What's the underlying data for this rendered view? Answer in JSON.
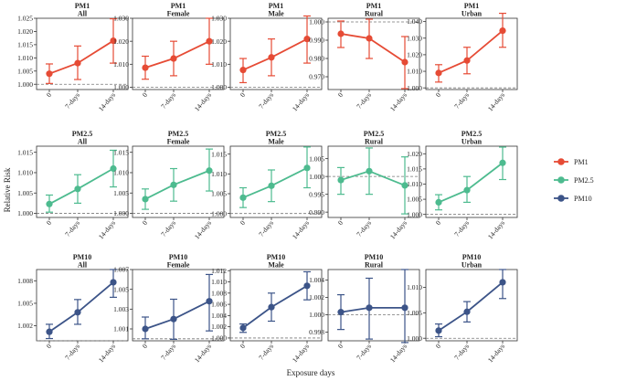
{
  "chart_data": {
    "type": "line",
    "ylabel": "Relative Risk",
    "xlabel": "Exposure days",
    "categories": [
      "0",
      "7-days",
      "14-days"
    ],
    "reference_line": 1.0,
    "legend": [
      {
        "name": "PM1",
        "color": "#e64b35"
      },
      {
        "name": "PM2.5",
        "color": "#4dbb8f"
      },
      {
        "name": "PM10",
        "color": "#3c5488"
      }
    ],
    "panels": [
      {
        "pollutant": "PM1",
        "group": "All",
        "color": "#e64b35",
        "ylim": [
          0.998,
          1.025
        ],
        "yticks": [
          "1.000",
          "1.005",
          "1.010",
          "1.015",
          "1.020",
          "1.025"
        ],
        "tick_values": [
          1.0,
          1.005,
          1.01,
          1.015,
          1.02,
          1.025
        ],
        "values": [
          1.004,
          1.008,
          1.0165
        ],
        "lower": [
          1.0003,
          1.0018,
          1.008
        ],
        "upper": [
          1.0077,
          1.0145,
          1.0248
        ]
      },
      {
        "pollutant": "PM1",
        "group": "Female",
        "color": "#e64b35",
        "ylim": [
          0.999,
          1.03
        ],
        "yticks": [
          "1.000",
          "1.010",
          "1.020",
          "1.030"
        ],
        "tick_values": [
          1.0,
          1.01,
          1.02,
          1.03
        ],
        "values": [
          1.0085,
          1.0125,
          1.02
        ],
        "lower": [
          1.0035,
          1.005,
          1.01
        ],
        "upper": [
          1.0135,
          1.02,
          1.03
        ]
      },
      {
        "pollutant": "PM1",
        "group": "Male",
        "color": "#e64b35",
        "ylim": [
          0.999,
          1.03
        ],
        "yticks": [
          "1.000",
          "1.010",
          "1.020",
          "1.030"
        ],
        "tick_values": [
          1.0,
          1.01,
          1.02,
          1.03
        ],
        "values": [
          1.0075,
          1.013,
          1.021
        ],
        "lower": [
          1.002,
          1.005,
          1.0105
        ],
        "upper": [
          1.0125,
          1.021,
          1.031
        ]
      },
      {
        "pollutant": "PM1",
        "group": "Rural",
        "color": "#e64b35",
        "ylim": [
          0.963,
          1.002
        ],
        "yticks": [
          "0.970",
          "0.980",
          "0.990",
          "1.000"
        ],
        "tick_values": [
          0.97,
          0.98,
          0.99,
          1.0
        ],
        "values": [
          0.9935,
          0.991,
          0.978
        ],
        "lower": [
          0.986,
          0.98,
          0.9635
        ],
        "upper": [
          1.0005,
          1.0015,
          0.992
        ]
      },
      {
        "pollutant": "PM1",
        "group": "Urban",
        "color": "#e64b35",
        "ylim": [
          0.999,
          1.042
        ],
        "yticks": [
          "1.000",
          "1.010",
          "1.020",
          "1.030",
          "1.040"
        ],
        "tick_values": [
          1.0,
          1.01,
          1.02,
          1.03,
          1.04
        ],
        "values": [
          1.009,
          1.0165,
          1.0345
        ],
        "lower": [
          1.0035,
          1.0085,
          1.0245
        ],
        "upper": [
          1.014,
          1.0245,
          1.045
        ]
      },
      {
        "pollutant": "PM2.5",
        "group": "All",
        "color": "#4dbb8f",
        "ylim": [
          0.999,
          1.0165
        ],
        "yticks": [
          "1.000",
          "1.005",
          "1.010",
          "1.015"
        ],
        "tick_values": [
          1.0,
          1.005,
          1.01,
          1.015
        ],
        "values": [
          1.0023,
          1.006,
          1.011
        ],
        "lower": [
          1.0003,
          1.0025,
          1.0065
        ],
        "upper": [
          1.0045,
          1.0095,
          1.0155
        ]
      },
      {
        "pollutant": "PM2.5",
        "group": "Female",
        "color": "#4dbb8f",
        "ylim": [
          0.999,
          1.0165
        ],
        "yticks": [
          "1.000",
          "1.005",
          "1.010",
          "1.015"
        ],
        "tick_values": [
          1.0,
          1.005,
          1.01,
          1.015
        ],
        "values": [
          1.0035,
          1.007,
          1.0105
        ],
        "lower": [
          1.001,
          1.003,
          1.0055
        ],
        "upper": [
          1.006,
          1.011,
          1.0158
        ]
      },
      {
        "pollutant": "PM2.5",
        "group": "Male",
        "color": "#4dbb8f",
        "ylim": [
          0.999,
          1.017
        ],
        "yticks": [
          "1.000",
          "1.005",
          "1.010",
          "1.015"
        ],
        "tick_values": [
          1.0,
          1.005,
          1.01,
          1.015
        ],
        "values": [
          1.004,
          1.007,
          1.0115
        ],
        "lower": [
          1.0015,
          1.003,
          1.0065
        ],
        "upper": [
          1.0065,
          1.011,
          1.0168
        ]
      },
      {
        "pollutant": "PM2.5",
        "group": "Rural",
        "color": "#4dbb8f",
        "ylim": [
          0.9885,
          1.0085
        ],
        "yticks": [
          "0.990",
          "0.995",
          "1.000",
          "1.005"
        ],
        "tick_values": [
          0.99,
          0.995,
          1.0,
          1.005
        ],
        "values": [
          0.999,
          1.0015,
          0.9975
        ],
        "lower": [
          0.995,
          0.995,
          0.9895
        ],
        "upper": [
          1.0025,
          1.008,
          1.0055
        ]
      },
      {
        "pollutant": "PM2.5",
        "group": "Urban",
        "color": "#4dbb8f",
        "ylim": [
          0.999,
          1.0225
        ],
        "yticks": [
          "1.000",
          "1.005",
          "1.010",
          "1.015",
          "1.020"
        ],
        "tick_values": [
          1.0,
          1.005,
          1.01,
          1.015,
          1.02
        ],
        "values": [
          1.004,
          1.008,
          1.017
        ],
        "lower": [
          1.0015,
          1.004,
          1.0115
        ],
        "upper": [
          1.0065,
          1.0125,
          1.0222
        ]
      },
      {
        "pollutant": "PM10",
        "group": "All",
        "color": "#3c5488",
        "ylim": [
          1.0,
          1.0095
        ],
        "yticks": [
          "1.002",
          "1.005",
          "1.008"
        ],
        "tick_values": [
          1.002,
          1.005,
          1.008
        ],
        "values": [
          1.0012,
          1.0038,
          1.0078
        ],
        "lower": [
          1.0003,
          1.0022,
          1.0058
        ],
        "upper": [
          1.0022,
          1.0055,
          1.0095
        ]
      },
      {
        "pollutant": "PM10",
        "group": "Female",
        "color": "#3c5488",
        "ylim": [
          0.9998,
          1.007
        ],
        "yticks": [
          "1.001",
          "1.003",
          "1.005",
          "1.007"
        ],
        "tick_values": [
          1.001,
          1.003,
          1.005,
          1.007
        ],
        "values": [
          1.001,
          1.002,
          1.0038
        ],
        "lower": [
          1.0,
          0.99995,
          1.0008
        ],
        "upper": [
          1.0022,
          1.004,
          1.0065
        ]
      },
      {
        "pollutant": "PM10",
        "group": "Male",
        "color": "#3c5488",
        "ylim": [
          0.9995,
          1.0122
        ],
        "yticks": [
          "1.000",
          "1.002",
          "1.004",
          "1.006",
          "1.008",
          "1.010",
          "1.012"
        ],
        "tick_values": [
          1.0,
          1.002,
          1.004,
          1.006,
          1.008,
          1.01,
          1.012
        ],
        "values": [
          1.0018,
          1.0055,
          1.0093
        ],
        "lower": [
          1.001,
          1.003,
          1.0068
        ],
        "upper": [
          1.0025,
          1.008,
          1.0118
        ]
      },
      {
        "pollutant": "PM10",
        "group": "Rural",
        "color": "#3c5488",
        "ylim": [
          0.997,
          1.0052
        ],
        "yticks": [
          "0.998",
          "1.000",
          "1.002",
          "1.004"
        ],
        "tick_values": [
          0.998,
          1.0,
          1.002,
          1.004
        ],
        "values": [
          1.0003,
          1.0008,
          1.0008
        ],
        "lower": [
          0.9983,
          0.9972,
          0.9968
        ],
        "upper": [
          1.0023,
          1.0042,
          1.0052
        ]
      },
      {
        "pollutant": "PM10",
        "group": "Urban",
        "color": "#3c5488",
        "ylim": [
          0.9995,
          1.0135
        ],
        "yticks": [
          "1.000",
          "1.005",
          "1.010"
        ],
        "tick_values": [
          1.0,
          1.005,
          1.01
        ],
        "values": [
          1.0015,
          1.0052,
          1.011
        ],
        "lower": [
          1.0003,
          1.0032,
          1.0078
        ],
        "upper": [
          1.0028,
          1.0072,
          1.0135
        ]
      }
    ]
  }
}
